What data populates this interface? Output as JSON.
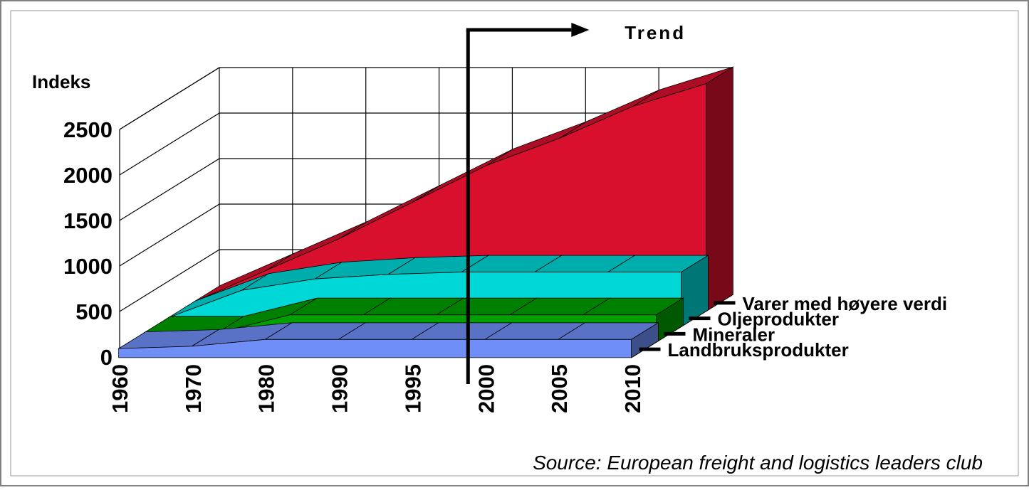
{
  "chart_data": {
    "type": "area",
    "subtype": "3d-stacked-depth",
    "ylabel": "Indeks",
    "y_ticks": [
      "0",
      "500",
      "1000",
      "1500",
      "2000",
      "2500"
    ],
    "ylim": [
      0,
      2500
    ],
    "categories": [
      "1960",
      "1970",
      "1980",
      "1990",
      "1995",
      "2000",
      "2005",
      "2010"
    ],
    "series": [
      {
        "name": "Varer med høyere verdi",
        "color": "#d8102e",
        "values": [
          100,
          450,
          800,
          1200,
          1600,
          1900,
          2250,
          2500
        ]
      },
      {
        "name": "Oljeprodukter",
        "color": "#00d8d8",
        "values": [
          100,
          400,
          525,
          575,
          600,
          600,
          600,
          600
        ]
      },
      {
        "name": "Mineraler",
        "color": "#00a000",
        "values": [
          100,
          100,
          300,
          300,
          300,
          300,
          300,
          300
        ]
      },
      {
        "name": "Landbruksprodukter",
        "color": "#6f8ff7",
        "values": [
          100,
          125,
          200,
          200,
          200,
          200,
          200,
          200
        ]
      }
    ],
    "annotation_trend": "Trend",
    "trend_marker_category": "2000",
    "grid": true,
    "legend": "right"
  },
  "source": "Source: European freight and logistics leaders club"
}
